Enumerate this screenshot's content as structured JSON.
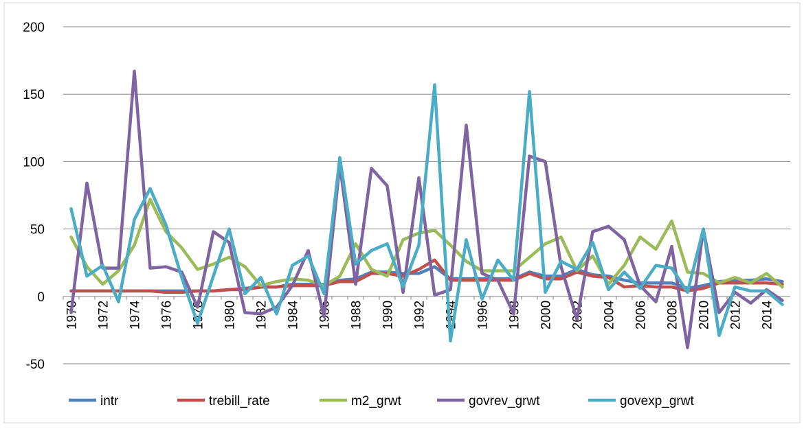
{
  "chart_data": {
    "type": "line",
    "categories": [
      "1970",
      null,
      "1972",
      null,
      "1974",
      null,
      "1976",
      null,
      "1978",
      null,
      "1980",
      null,
      "1982",
      null,
      "1984",
      null,
      "1986",
      null,
      "1988",
      null,
      "1990",
      null,
      "1992",
      null,
      "1994",
      null,
      "1996",
      null,
      "1998",
      null,
      "2000",
      null,
      "2002",
      null,
      "2004",
      null,
      "2006",
      null,
      "2008",
      null,
      "2010",
      null,
      "2012",
      null,
      "2014",
      null
    ],
    "series": [
      {
        "name": "intr",
        "color": "#4f81bd",
        "values": [
          4,
          4,
          4,
          4,
          4,
          4,
          4,
          4,
          4,
          4,
          5,
          6,
          7,
          7,
          9,
          9,
          9,
          12,
          13,
          18,
          18,
          17,
          17,
          22,
          13,
          13,
          13,
          13,
          13,
          18,
          15,
          15,
          20,
          16,
          15,
          12,
          10,
          10,
          10,
          6,
          8,
          11,
          12,
          12,
          13,
          11
        ]
      },
      {
        "name": "trebill_rate",
        "color": "#c0504d",
        "values": [
          4,
          4,
          4,
          4,
          4,
          4,
          3,
          3,
          4,
          4,
          5,
          5,
          7,
          7,
          8,
          8,
          8,
          11,
          11,
          17,
          17,
          15,
          20,
          27,
          12,
          12,
          12,
          12,
          12,
          17,
          13,
          13,
          18,
          15,
          14,
          7,
          8,
          7,
          7,
          4,
          6,
          10,
          10,
          10,
          10,
          9
        ]
      },
      {
        "name": "m2_grwt",
        "color": "#9bbb59",
        "values": [
          44,
          22,
          9,
          19,
          38,
          72,
          48,
          36,
          20,
          24,
          29,
          22,
          8,
          11,
          13,
          12,
          8,
          15,
          39,
          20,
          15,
          42,
          47,
          49,
          38,
          26,
          19,
          19,
          19,
          29,
          39,
          44,
          19,
          30,
          9,
          23,
          44,
          35,
          56,
          18,
          17,
          10,
          14,
          10,
          17,
          7
        ]
      },
      {
        "name": "govrev_grwt",
        "color": "#8064a2",
        "values": [
          -12,
          84,
          21,
          21,
          167,
          21,
          22,
          18,
          -8,
          48,
          40,
          -12,
          -13,
          -8,
          8,
          34,
          -15,
          98,
          9,
          95,
          82,
          3,
          88,
          1,
          5,
          127,
          17,
          12,
          -13,
          104,
          100,
          22,
          -17,
          48,
          52,
          42,
          8,
          -4,
          37,
          -38,
          50,
          -12,
          3,
          -5,
          5,
          -3
        ]
      },
      {
        "name": "govexp_grwt",
        "color": "#4bacc6",
        "values": [
          65,
          15,
          23,
          -4,
          57,
          80,
          53,
          14,
          -20,
          15,
          50,
          2,
          14,
          -13,
          23,
          30,
          2,
          103,
          24,
          34,
          39,
          7,
          38,
          157,
          -33,
          42,
          -2,
          27,
          12,
          152,
          3,
          26,
          20,
          40,
          5,
          18,
          6,
          23,
          21,
          3,
          50,
          -29,
          7,
          4,
          4,
          -6
        ]
      }
    ],
    "ylim": [
      -50,
      200
    ],
    "yticks": [
      -50,
      0,
      50,
      100,
      150,
      200
    ],
    "grid": true,
    "legend": "bottom"
  }
}
